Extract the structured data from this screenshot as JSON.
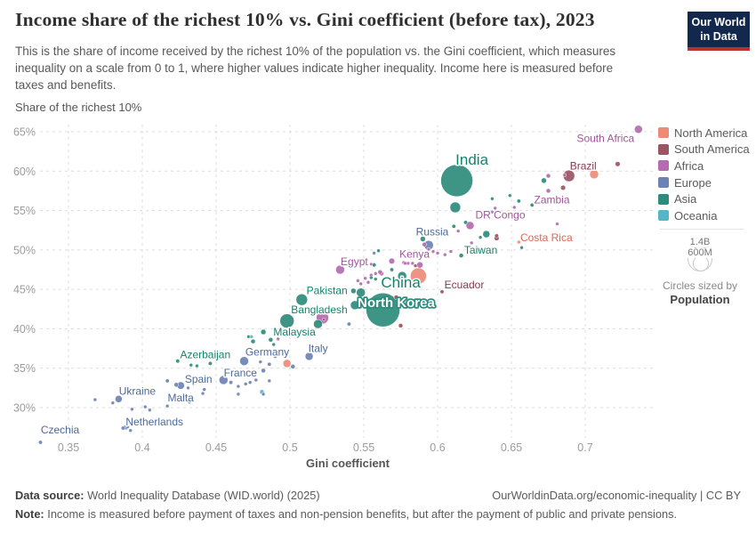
{
  "header": {
    "title": "Income share of the richest 10% vs. Gini coefficient (before tax), 2023",
    "subtitle": "This is the share of income received by the richest 10% of the population vs. the Gini coefficient, which measures inequality on a scale from 0 to 1, where higher values indicate higher inequality. Income here is measured before taxes and benefits.",
    "logo_line1": "Our World",
    "logo_line2": "in Data"
  },
  "legend": {
    "items": [
      {
        "label": "North America",
        "color": "#EC8C77",
        "label_color": "#E0674F"
      },
      {
        "label": "South America",
        "color": "#9B5563",
        "label_color": "#833A49"
      },
      {
        "label": "Africa",
        "color": "#B46BAF",
        "label_color": "#A2559C"
      },
      {
        "label": "Europe",
        "color": "#6E83B5",
        "label_color": "#4C6A9C"
      },
      {
        "label": "Asia",
        "color": "#2E8C7C",
        "label_color": "#15836A"
      },
      {
        "label": "Oceania",
        "color": "#55B7C6",
        "label_color": "#38AABA"
      }
    ]
  },
  "size_legend": {
    "big_value": "1.4B",
    "small_value": "600M",
    "caption": "Circles sized by",
    "caption_bold": "Population"
  },
  "footer": {
    "source_prefix": "Data source:",
    "source_text": " World Inequality Database (WID.world) (2025)",
    "link_text": "OurWorldinData.org/economic-inequality | CC BY",
    "note_prefix": "Note:",
    "note_text": " Income is measured before payment of taxes and non-pension benefits, but after the payment of public and private pensions."
  },
  "chart_data": {
    "type": "scatter",
    "title": "Income share of the richest 10% vs. Gini coefficient (before tax), 2023",
    "xlabel": "Gini coefficient",
    "ylabel": "Share of the richest 10%",
    "x_ticks": [
      0.35,
      0.4,
      0.45,
      0.5,
      0.55,
      0.6,
      0.65,
      0.7
    ],
    "y_ticks": [
      30,
      35,
      40,
      45,
      50,
      55,
      60,
      65
    ],
    "xlim": [
      0.33,
      0.748
    ],
    "ylim": [
      25,
      66
    ],
    "grid": true,
    "legend_position": "right",
    "continent_codes": {
      "NA": "North America",
      "SA": "South America",
      "AF": "Africa",
      "EU": "Europe",
      "AS": "Asia",
      "OC": "Oceania"
    },
    "series": [
      {
        "name": "South Africa",
        "gini": 0.736,
        "share": 65.3,
        "r": 4.5,
        "c": "AF",
        "dx": -37,
        "dy": 10
      },
      {
        "name": "Brazil",
        "gini": 0.689,
        "share": 59.4,
        "r": 6.5,
        "c": "SA",
        "dx": 16,
        "dy": -11
      },
      {
        "name": "India",
        "gini": 0.613,
        "share": 58.8,
        "r": 18,
        "c": "AS",
        "dx": 17,
        "dy": -22,
        "size": 17
      },
      {
        "name": "Zambia",
        "gini": 0.675,
        "share": 57.5,
        "r": 2.5,
        "c": "AF",
        "dx": 4,
        "dy": 10
      },
      {
        "name": "DR Congo",
        "gini": 0.622,
        "share": 53.1,
        "r": 4.5,
        "c": "AF",
        "dx": 34,
        "dy": -12
      },
      {
        "name": "Costa Rica",
        "gini": 0.655,
        "share": 51.0,
        "r": 2,
        "c": "NA",
        "dx": 31,
        "dy": -5
      },
      {
        "name": "Russia",
        "gini": 0.594,
        "share": 50.6,
        "r": 5.3,
        "c": "EU",
        "dx": 4,
        "dy": -15
      },
      {
        "name": "Taiwan",
        "gini": 0.616,
        "share": 49.3,
        "r": 2.5,
        "c": "AS",
        "dx": 22,
        "dy": -6
      },
      {
        "name": "Kenya",
        "gini": 0.588,
        "share": 48.1,
        "r": 3.5,
        "c": "AF",
        "dx": -6,
        "dy": -12
      },
      {
        "name": "Egypt",
        "gini": 0.534,
        "share": 47.5,
        "r": 5,
        "c": "AF",
        "dx": 16,
        "dy": -9
      },
      {
        "name": "Ecuador",
        "gini": 0.603,
        "share": 44.7,
        "r": 2.2,
        "c": "SA",
        "dx": 25,
        "dy": -8
      },
      {
        "name": "China",
        "gini": 0.563,
        "share": 42.4,
        "r": 19,
        "c": "AS",
        "dx": 20,
        "dy": -29,
        "size": 17
      },
      {
        "name": "North Korea",
        "gini": 0.572,
        "share": 43.2,
        "r": 0,
        "c": "AS",
        "dx": 0,
        "dy": 4,
        "size": 15,
        "halo": true
      },
      {
        "name": "Pakistan",
        "gini": 0.548,
        "share": 44.6,
        "r": 5,
        "c": "AS",
        "dx": -38,
        "dy": -2
      },
      {
        "name": "Bangladesh",
        "gini": 0.544,
        "share": 43.0,
        "r": 5,
        "c": "AS",
        "dx": -40,
        "dy": 5
      },
      {
        "name": "Malaysia",
        "gini": 0.482,
        "share": 39.6,
        "r": 3,
        "c": "AS",
        "dx": 35,
        "dy": 0
      },
      {
        "name": "Italy",
        "gini": 0.513,
        "share": 36.5,
        "r": 4.5,
        "c": "EU",
        "dx": 10,
        "dy": -9
      },
      {
        "name": "Germany",
        "gini": 0.469,
        "share": 35.9,
        "r": 5,
        "c": "EU",
        "dx": 26,
        "dy": -10
      },
      {
        "name": "Azerbaijan",
        "gini": 0.424,
        "share": 35.9,
        "r": 2.2,
        "c": "AS",
        "dx": 31,
        "dy": -7
      },
      {
        "name": "France",
        "gini": 0.455,
        "share": 33.5,
        "r": 5,
        "c": "EU",
        "dx": 19,
        "dy": -8
      },
      {
        "name": "Spain",
        "gini": 0.426,
        "share": 32.8,
        "r": 4.2,
        "c": "EU",
        "dx": 20,
        "dy": -7
      },
      {
        "name": "Ukraine",
        "gini": 0.384,
        "share": 31.1,
        "r": 4,
        "c": "EU",
        "dx": 21,
        "dy": -9
      },
      {
        "name": "Malta",
        "gini": 0.417,
        "share": 30.2,
        "r": 2,
        "c": "EU",
        "dx": 15,
        "dy": -9
      },
      {
        "name": "Netherlands",
        "gini": 0.389,
        "share": 27.5,
        "r": 2.8,
        "c": "EU",
        "dx": 32,
        "dy": -6
      },
      {
        "name": "Czechia",
        "gini": 0.331,
        "share": 25.6,
        "r": 2.2,
        "c": "EU",
        "dx": 22,
        "dy": -14
      }
    ],
    "background_points": [
      {
        "gini": 0.722,
        "share": 60.9,
        "r": 2.8,
        "c": "SA"
      },
      {
        "gini": 0.706,
        "share": 59.6,
        "r": 5,
        "c": "NA"
      },
      {
        "gini": 0.686,
        "share": 59.5,
        "r": 2,
        "c": "AF"
      },
      {
        "gini": 0.672,
        "share": 58.8,
        "r": 3,
        "c": "AS"
      },
      {
        "gini": 0.675,
        "share": 59.4,
        "r": 2.5,
        "c": "AF"
      },
      {
        "gini": 0.685,
        "share": 57.9,
        "r": 2.8,
        "c": "SA"
      },
      {
        "gini": 0.681,
        "share": 53.3,
        "r": 2,
        "c": "AF"
      },
      {
        "gini": 0.649,
        "share": 56.9,
        "r": 2,
        "c": "AS"
      },
      {
        "gini": 0.655,
        "share": 56.2,
        "r": 2.2,
        "c": "AS"
      },
      {
        "gini": 0.652,
        "share": 55.4,
        "r": 2,
        "c": "AF"
      },
      {
        "gini": 0.664,
        "share": 55.7,
        "r": 2.2,
        "c": "AS"
      },
      {
        "gini": 0.64,
        "share": 51.5,
        "r": 2.8,
        "c": "SA"
      },
      {
        "gini": 0.657,
        "share": 50.3,
        "r": 2,
        "c": "AS"
      },
      {
        "gini": 0.637,
        "share": 54.8,
        "r": 2,
        "c": "AF"
      },
      {
        "gini": 0.633,
        "share": 52.0,
        "r": 4,
        "c": "AS"
      },
      {
        "gini": 0.64,
        "share": 51.8,
        "r": 2.2,
        "c": "SA"
      },
      {
        "gini": 0.619,
        "share": 53.5,
        "r": 2.2,
        "c": "AS"
      },
      {
        "gini": 0.614,
        "share": 52.4,
        "r": 2,
        "c": "AF"
      },
      {
        "gini": 0.611,
        "share": 53.0,
        "r": 2.2,
        "c": "AS"
      },
      {
        "gini": 0.623,
        "share": 50.9,
        "r": 2,
        "c": "AF"
      },
      {
        "gini": 0.629,
        "share": 51.6,
        "r": 2,
        "c": "AS"
      },
      {
        "gini": 0.639,
        "share": 55.3,
        "r": 2,
        "c": "AF"
      },
      {
        "gini": 0.637,
        "share": 56.5,
        "r": 2,
        "c": "AS"
      },
      {
        "gini": 0.612,
        "share": 55.4,
        "r": 6,
        "c": "AS"
      },
      {
        "gini": 0.59,
        "share": 51.4,
        "r": 3,
        "c": "AS"
      },
      {
        "gini": 0.591,
        "share": 50.7,
        "r": 2.5,
        "c": "AF"
      },
      {
        "gini": 0.594,
        "share": 50.1,
        "r": 2,
        "c": "AF"
      },
      {
        "gini": 0.597,
        "share": 49.8,
        "r": 2,
        "c": "AF"
      },
      {
        "gini": 0.6,
        "share": 49.6,
        "r": 2,
        "c": "AF"
      },
      {
        "gini": 0.605,
        "share": 49.4,
        "r": 2,
        "c": "AF"
      },
      {
        "gini": 0.609,
        "share": 49.8,
        "r": 2,
        "c": "AF"
      },
      {
        "gini": 0.577,
        "share": 48.4,
        "r": 2,
        "c": "AF"
      },
      {
        "gini": 0.58,
        "share": 48.3,
        "r": 2,
        "c": "AF"
      },
      {
        "gini": 0.583,
        "share": 48.3,
        "r": 2,
        "c": "AF"
      },
      {
        "gini": 0.585,
        "share": 48.0,
        "r": 2,
        "c": "SA"
      },
      {
        "gini": 0.569,
        "share": 47.5,
        "r": 2.2,
        "c": "AS"
      },
      {
        "gini": 0.562,
        "share": 47.0,
        "r": 2.5,
        "c": "AF"
      },
      {
        "gini": 0.56,
        "share": 49.9,
        "r": 2,
        "c": "AS"
      },
      {
        "gini": 0.557,
        "share": 49.6,
        "r": 2,
        "c": "EU"
      },
      {
        "gini": 0.569,
        "share": 48.6,
        "r": 3.3,
        "c": "AF"
      },
      {
        "gini": 0.578,
        "share": 48.3,
        "r": 2,
        "c": "AF"
      },
      {
        "gini": 0.557,
        "share": 48.1,
        "r": 2.3,
        "c": "AS"
      },
      {
        "gini": 0.555,
        "share": 48.2,
        "r": 1.8,
        "c": "AF"
      },
      {
        "gini": 0.587,
        "share": 46.7,
        "r": 9,
        "c": "NA"
      },
      {
        "gini": 0.576,
        "share": 46.7,
        "r": 5,
        "c": "AS"
      },
      {
        "gini": 0.561,
        "share": 47.2,
        "r": 2.5,
        "c": "AF"
      },
      {
        "gini": 0.572,
        "share": 44.0,
        "r": 2.5,
        "c": "SA"
      },
      {
        "gini": 0.575,
        "share": 40.4,
        "r": 2.5,
        "c": "SA"
      },
      {
        "gini": 0.546,
        "share": 46.1,
        "r": 2,
        "c": "AF"
      },
      {
        "gini": 0.551,
        "share": 46.4,
        "r": 2,
        "c": "AF"
      },
      {
        "gini": 0.555,
        "share": 46.8,
        "r": 2,
        "c": "AF"
      },
      {
        "gini": 0.558,
        "share": 47.0,
        "r": 2,
        "c": "AF"
      },
      {
        "gini": 0.553,
        "share": 45.9,
        "r": 2,
        "c": "AF"
      },
      {
        "gini": 0.555,
        "share": 46.5,
        "r": 2,
        "c": "AS"
      },
      {
        "gini": 0.558,
        "share": 46.3,
        "r": 2,
        "c": "AS"
      },
      {
        "gini": 0.548,
        "share": 45.7,
        "r": 2,
        "c": "AF"
      },
      {
        "gini": 0.543,
        "share": 44.8,
        "r": 3,
        "c": "AS"
      },
      {
        "gini": 0.54,
        "share": 40.6,
        "r": 2.2,
        "c": "EU"
      },
      {
        "gini": 0.522,
        "share": 41.4,
        "r": 7,
        "c": "AF"
      },
      {
        "gini": 0.523,
        "share": 41.2,
        "r": 1.6,
        "c": "SA"
      },
      {
        "gini": 0.519,
        "share": 40.6,
        "r": 5,
        "c": "AS"
      },
      {
        "gini": 0.498,
        "share": 41.0,
        "r": 8,
        "c": "AS"
      },
      {
        "gini": 0.508,
        "share": 43.7,
        "r": 6.5,
        "c": "AS"
      },
      {
        "gini": 0.472,
        "share": 39.0,
        "r": 2,
        "c": "AS"
      },
      {
        "gini": 0.475,
        "share": 38.4,
        "r": 2.5,
        "c": "AS"
      },
      {
        "gini": 0.487,
        "share": 38.6,
        "r": 2.5,
        "c": "AS"
      },
      {
        "gini": 0.489,
        "share": 38.0,
        "r": 2,
        "c": "AS"
      },
      {
        "gini": 0.492,
        "share": 38.7,
        "r": 2,
        "c": "AF"
      },
      {
        "gini": 0.474,
        "share": 39.0,
        "r": 2,
        "c": "OC"
      },
      {
        "gini": 0.49,
        "share": 36.5,
        "r": 2.2,
        "c": "EU"
      },
      {
        "gini": 0.498,
        "share": 35.6,
        "r": 4.5,
        "c": "NA"
      },
      {
        "gini": 0.502,
        "share": 35.2,
        "r": 2.5,
        "c": "EU"
      },
      {
        "gini": 0.486,
        "share": 35.5,
        "r": 2.2,
        "c": "EU"
      },
      {
        "gini": 0.48,
        "share": 35.8,
        "r": 2,
        "c": "EU"
      },
      {
        "gini": 0.481,
        "share": 32.0,
        "r": 2.5,
        "c": "OC"
      },
      {
        "gini": 0.482,
        "share": 34.7,
        "r": 2.5,
        "c": "EU"
      },
      {
        "gini": 0.46,
        "share": 33.2,
        "r": 2.2,
        "c": "EU"
      },
      {
        "gini": 0.465,
        "share": 32.7,
        "r": 2,
        "c": "EU"
      },
      {
        "gini": 0.47,
        "share": 33.0,
        "r": 2,
        "c": "EU"
      },
      {
        "gini": 0.473,
        "share": 33.2,
        "r": 2,
        "c": "EU"
      },
      {
        "gini": 0.477,
        "share": 33.5,
        "r": 2,
        "c": "EU"
      },
      {
        "gini": 0.482,
        "share": 31.7,
        "r": 2,
        "c": "EU"
      },
      {
        "gini": 0.465,
        "share": 31.7,
        "r": 2,
        "c": "EU"
      },
      {
        "gini": 0.486,
        "share": 33.4,
        "r": 2,
        "c": "EU"
      },
      {
        "gini": 0.437,
        "share": 35.3,
        "r": 2,
        "c": "AS"
      },
      {
        "gini": 0.446,
        "share": 35.6,
        "r": 2.2,
        "c": "AS"
      },
      {
        "gini": 0.433,
        "share": 35.4,
        "r": 2,
        "c": "AS"
      },
      {
        "gini": 0.417,
        "share": 33.4,
        "r": 2.2,
        "c": "EU"
      },
      {
        "gini": 0.423,
        "share": 32.9,
        "r": 2.5,
        "c": "EU"
      },
      {
        "gini": 0.431,
        "share": 32.5,
        "r": 2,
        "c": "EU"
      },
      {
        "gini": 0.442,
        "share": 32.3,
        "r": 2,
        "c": "EU"
      },
      {
        "gini": 0.441,
        "share": 31.8,
        "r": 2,
        "c": "EU"
      },
      {
        "gini": 0.38,
        "share": 30.6,
        "r": 2,
        "c": "EU"
      },
      {
        "gini": 0.368,
        "share": 31.0,
        "r": 2,
        "c": "EU"
      },
      {
        "gini": 0.393,
        "share": 29.8,
        "r": 2,
        "c": "EU"
      },
      {
        "gini": 0.402,
        "share": 30.1,
        "r": 2,
        "c": "EU"
      },
      {
        "gini": 0.405,
        "share": 29.7,
        "r": 2,
        "c": "EU"
      },
      {
        "gini": 0.43,
        "share": 31.5,
        "r": 2,
        "c": "EU"
      },
      {
        "gini": 0.432,
        "share": 30.7,
        "r": 2,
        "c": "EU"
      },
      {
        "gini": 0.387,
        "share": 27.4,
        "r": 2.2,
        "c": "EU"
      },
      {
        "gini": 0.39,
        "share": 27.6,
        "r": 2.2,
        "c": "EU"
      },
      {
        "gini": 0.392,
        "share": 27.1,
        "r": 2,
        "c": "EU"
      }
    ]
  }
}
